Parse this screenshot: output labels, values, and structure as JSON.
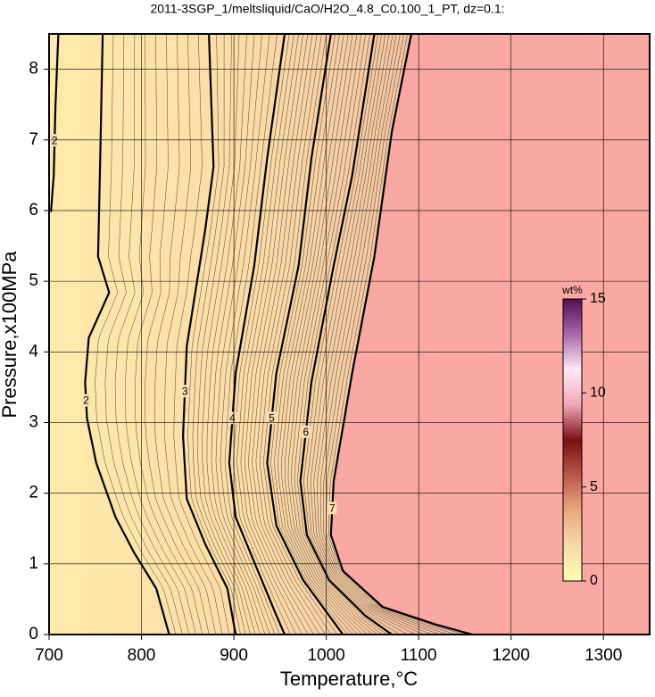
{
  "chart_data": {
    "type": "contour",
    "title": "2011-3SGP_1/meltsliquid/CaO/H2O_4.8_C0.100_1_PT, dz=0.1:",
    "x_label": "Temperature,°C",
    "y_label": "Pressure,x100MPa",
    "xlim": [
      700,
      1350
    ],
    "ylim": [
      0,
      8.5
    ],
    "xticks": [
      700,
      800,
      900,
      1000,
      1100,
      1200,
      1300
    ],
    "yticks": [
      0,
      1,
      2,
      3,
      4,
      5,
      6,
      7,
      8
    ],
    "grid": true,
    "saturated_color": "#f9a8a2",
    "series": [
      {
        "name": "2",
        "color": "#000000",
        "x": [
          758,
          755,
          753,
          765,
          743,
          739,
          741,
          751,
          772,
          792,
          816,
          830
        ],
        "y": [
          8.5,
          6.49,
          5.35,
          4.84,
          4.2,
          3.57,
          3.06,
          2.43,
          1.66,
          1.16,
          0.65,
          0
        ]
      },
      {
        "name": "3",
        "color": "#000000",
        "x": [
          873,
          878,
          869,
          849,
          845,
          849,
          869,
          893,
          902
        ],
        "y": [
          8.5,
          6.62,
          5.73,
          4.08,
          2.81,
          1.92,
          1.28,
          0.65,
          0
        ]
      },
      {
        "name": "4",
        "color": "#000000",
        "x": [
          955,
          936,
          922,
          902,
          895,
          902,
          926,
          946,
          955
        ],
        "y": [
          8.5,
          6.74,
          5.22,
          3.7,
          2.43,
          1.66,
          0.9,
          0.27,
          0
        ]
      },
      {
        "name": "5",
        "color": "#000000",
        "x": [
          1005,
          984,
          970,
          946,
          936,
          946,
          975,
          1003,
          1018
        ],
        "y": [
          8.5,
          6.74,
          5.22,
          3.7,
          2.43,
          1.54,
          0.77,
          0.27,
          0
        ]
      },
      {
        "name": "6",
        "color": "#000000",
        "x": [
          1052,
          1028,
          1008,
          984,
          972,
          979,
          1003,
          1042,
          1071
        ],
        "y": [
          8.5,
          6.49,
          5.22,
          3.57,
          2.17,
          1.41,
          0.77,
          0.27,
          0
        ]
      },
      {
        "name": "7",
        "color": "#000000",
        "x": [
          1092,
          1071,
          1052,
          1028,
          1008,
          1005,
          1018,
          1061,
          1119,
          1158
        ],
        "y": [
          8.5,
          7.12,
          5.35,
          3.7,
          2.17,
          1.41,
          0.9,
          0.39,
          0.14,
          0
        ]
      },
      {
        "name": "2",
        "color": "#000000",
        "x": [
          710,
          707,
          705,
          702
        ],
        "y": [
          8.5,
          7.5,
          6.49,
          5.98
        ]
      }
    ],
    "colorbar": {
      "title": "wt%",
      "lim": [
        0,
        15
      ],
      "ticks": [
        0,
        5,
        10,
        15
      ],
      "colors": [
        "#ffffb0",
        "#f7d9a8",
        "#e8a880",
        "#b85848",
        "#7a1010",
        "#f0a8b8",
        "#ffe8f8",
        "#a868a8",
        "#501050"
      ]
    }
  }
}
